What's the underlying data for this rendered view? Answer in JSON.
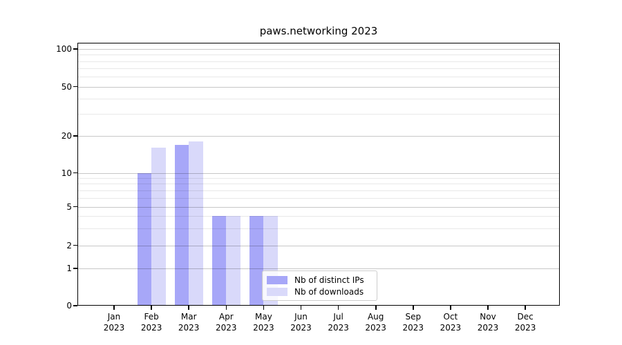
{
  "figure": {
    "title": "paws.networking 2023"
  },
  "y_axis": {
    "tick_labels": [
      "100",
      "50",
      "20",
      "10",
      "5",
      "2",
      "1",
      "0"
    ],
    "scale": "symlog"
  },
  "x_axis": {
    "months": [
      "Jan",
      "Feb",
      "Mar",
      "Apr",
      "May",
      "Jun",
      "Jul",
      "Aug",
      "Sep",
      "Oct",
      "Nov",
      "Dec"
    ],
    "year": "2023"
  },
  "legend": {
    "items": [
      {
        "label": "Nb of distinct IPs",
        "color": "#a7a7f8"
      },
      {
        "label": "Nb of downloads",
        "color": "#d9d9fa"
      }
    ]
  },
  "colors": {
    "bar_distinct_ips": "#a7a7f8",
    "bar_downloads": "#d9d9fa",
    "grid_major": "rgba(0,0,0,0.22)",
    "grid_minor": "rgba(0,0,0,0.09)",
    "axis": "#000000",
    "background": "#ffffff"
  },
  "chart_data": {
    "type": "bar",
    "title": "paws.networking 2023",
    "categories": [
      "Jan 2023",
      "Feb 2023",
      "Mar 2023",
      "Apr 2023",
      "May 2023",
      "Jun 2023",
      "Jul 2023",
      "Aug 2023",
      "Sep 2023",
      "Oct 2023",
      "Nov 2023",
      "Dec 2023"
    ],
    "series": [
      {
        "name": "Nb of distinct IPs",
        "color": "#a7a7f8",
        "values": [
          0,
          10,
          17,
          4,
          4,
          0,
          0,
          0,
          0,
          0,
          0,
          0
        ]
      },
      {
        "name": "Nb of downloads",
        "color": "#d9d9fa",
        "values": [
          0,
          16,
          18,
          4,
          4,
          0,
          0,
          0,
          0,
          0,
          0,
          0
        ]
      }
    ],
    "yscale": "symlog",
    "xlabel": "",
    "ylabel": "",
    "y_major_ticks": [
      0,
      1,
      2,
      5,
      10,
      20,
      50,
      100
    ],
    "y_minor_ticks": [
      3,
      4,
      6,
      7,
      8,
      9,
      30,
      40,
      60,
      70,
      80,
      90
    ],
    "ylim": [
      0,
      115
    ],
    "grid": true,
    "legend_position": "lower center inside"
  }
}
